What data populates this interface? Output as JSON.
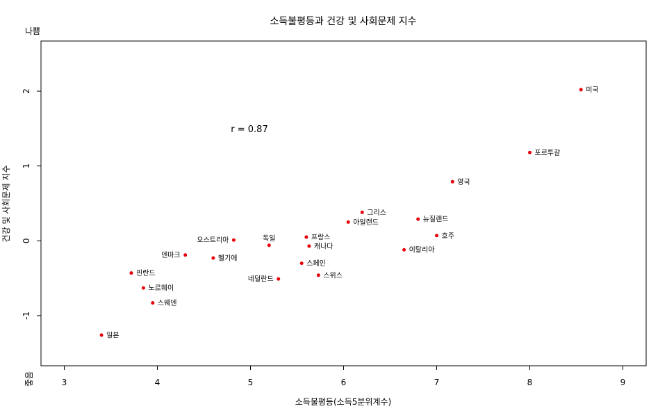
{
  "chart_data": {
    "type": "scatter",
    "title": "소득불평등과 건강 및 사회문제 지수",
    "xlabel": "소득불평등(소득5분위계수)",
    "ylabel": "건강 및 사회문제 지수",
    "y_top_label": "나쁨",
    "y_bottom_label": "좋음",
    "annotation": "r = 0.87",
    "xlim": [
      2.75,
      9.25
    ],
    "ylim": [
      -1.67,
      2.67
    ],
    "x_ticks": [
      3,
      4,
      5,
      6,
      7,
      8,
      9
    ],
    "y_ticks": [
      -1,
      0,
      1,
      2
    ],
    "x_tick_labels": [
      "3",
      "4",
      "5",
      "6",
      "7",
      "8",
      "9"
    ],
    "y_tick_labels": [
      "-1",
      "0",
      "1",
      "2"
    ],
    "point_color": "#e8000b",
    "points": [
      {
        "label": "미국",
        "x": 8.55,
        "y": 2.02,
        "side": "right"
      },
      {
        "label": "포르투갈",
        "x": 8.0,
        "y": 1.18,
        "side": "right"
      },
      {
        "label": "영국",
        "x": 7.17,
        "y": 0.79,
        "side": "right"
      },
      {
        "label": "그리스",
        "x": 6.2,
        "y": 0.38,
        "side": "right"
      },
      {
        "label": "뉴질랜드",
        "x": 6.8,
        "y": 0.29,
        "side": "right"
      },
      {
        "label": "아일랜드",
        "x": 6.05,
        "y": 0.25,
        "side": "right"
      },
      {
        "label": "호주",
        "x": 7.0,
        "y": 0.07,
        "side": "right"
      },
      {
        "label": "오스트리아",
        "x": 4.82,
        "y": 0.01,
        "side": "left"
      },
      {
        "label": "프랑스",
        "x": 5.6,
        "y": 0.05,
        "side": "right"
      },
      {
        "label": "독일",
        "x": 5.2,
        "y": -0.06,
        "side": "top"
      },
      {
        "label": "캐나다",
        "x": 5.63,
        "y": -0.07,
        "side": "right"
      },
      {
        "label": "이탈리아",
        "x": 6.65,
        "y": -0.12,
        "side": "right"
      },
      {
        "label": "덴마크",
        "x": 4.3,
        "y": -0.19,
        "side": "left"
      },
      {
        "label": "벨기에",
        "x": 4.6,
        "y": -0.23,
        "side": "right"
      },
      {
        "label": "스페인",
        "x": 5.55,
        "y": -0.3,
        "side": "right"
      },
      {
        "label": "핀란드",
        "x": 3.72,
        "y": -0.43,
        "side": "right"
      },
      {
        "label": "스위스",
        "x": 5.73,
        "y": -0.46,
        "side": "right"
      },
      {
        "label": "네덜란드",
        "x": 5.3,
        "y": -0.51,
        "side": "left"
      },
      {
        "label": "노르웨이",
        "x": 3.85,
        "y": -0.63,
        "side": "right"
      },
      {
        "label": "스웨덴",
        "x": 3.95,
        "y": -0.83,
        "side": "right"
      },
      {
        "label": "일본",
        "x": 3.4,
        "y": -1.26,
        "side": "right"
      }
    ]
  }
}
